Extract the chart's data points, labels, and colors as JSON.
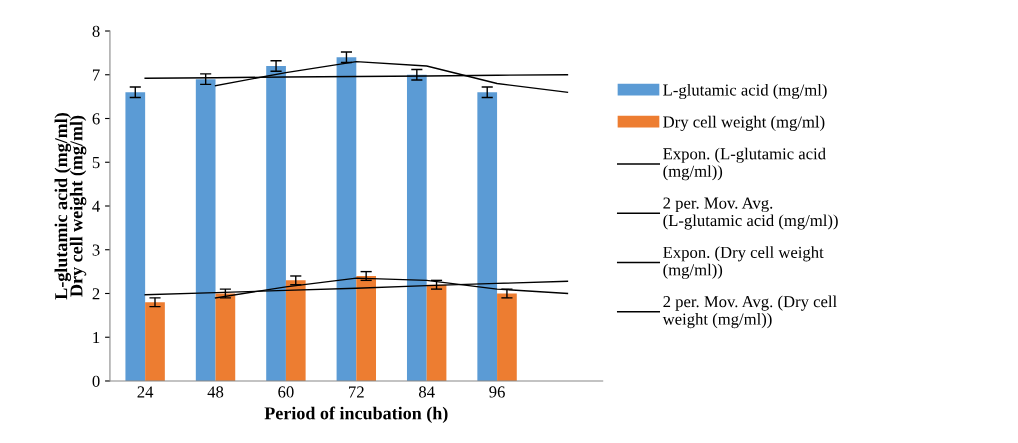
{
  "chart_data": {
    "type": "bar",
    "xlabel": "Period of incubation (h)",
    "ylabel": "L-glutamic acid (mg/ml)\nDry cell weight (mg/ml)",
    "categories": [
      "24",
      "48",
      "60",
      "72",
      "84",
      "96",
      null
    ],
    "series": [
      {
        "name": "L-glutamic acid (mg/ml)",
        "color": "#5b9bd5",
        "values": [
          6.6,
          6.9,
          7.2,
          7.4,
          7.0,
          6.6,
          null
        ],
        "errors": [
          0.12,
          0.12,
          0.12,
          0.12,
          0.12,
          0.12,
          null
        ]
      },
      {
        "name": "Dry cell weight (mg/ml)",
        "color": "#ed7d31",
        "values": [
          1.8,
          2.0,
          2.3,
          2.4,
          2.2,
          2.0,
          null
        ],
        "errors": [
          0.1,
          0.1,
          0.1,
          0.1,
          0.1,
          0.1,
          null
        ]
      },
      {
        "name": "Expon. (L-glutamic acid (mg/ml))",
        "type": "line",
        "color": "#000000",
        "values": [
          6.92,
          6.93,
          6.95,
          6.96,
          6.97,
          6.99,
          7.0
        ]
      },
      {
        "name": "2 per. Mov. Avg. (L-glutamic acid (mg/ml))",
        "type": "line",
        "color": "#000000",
        "values": [
          null,
          6.75,
          7.05,
          7.3,
          7.2,
          6.8,
          6.6
        ]
      },
      {
        "name": "Expon. (Dry cell weight (mg/ml))",
        "type": "line",
        "color": "#000000",
        "values": [
          1.97,
          2.02,
          2.07,
          2.12,
          2.18,
          2.23,
          2.28
        ]
      },
      {
        "name": "2 per. Mov. Avg. (Dry cell weight (mg/ml))",
        "type": "line",
        "color": "#000000",
        "values": [
          null,
          1.9,
          2.15,
          2.35,
          2.3,
          2.1,
          2.0
        ]
      }
    ],
    "ylim": [
      0,
      8
    ],
    "yticks": [
      0,
      1,
      2,
      3,
      4,
      5,
      6,
      7,
      8
    ],
    "grid": false,
    "legend": "right",
    "marker": "none",
    "line_style": "solid"
  }
}
